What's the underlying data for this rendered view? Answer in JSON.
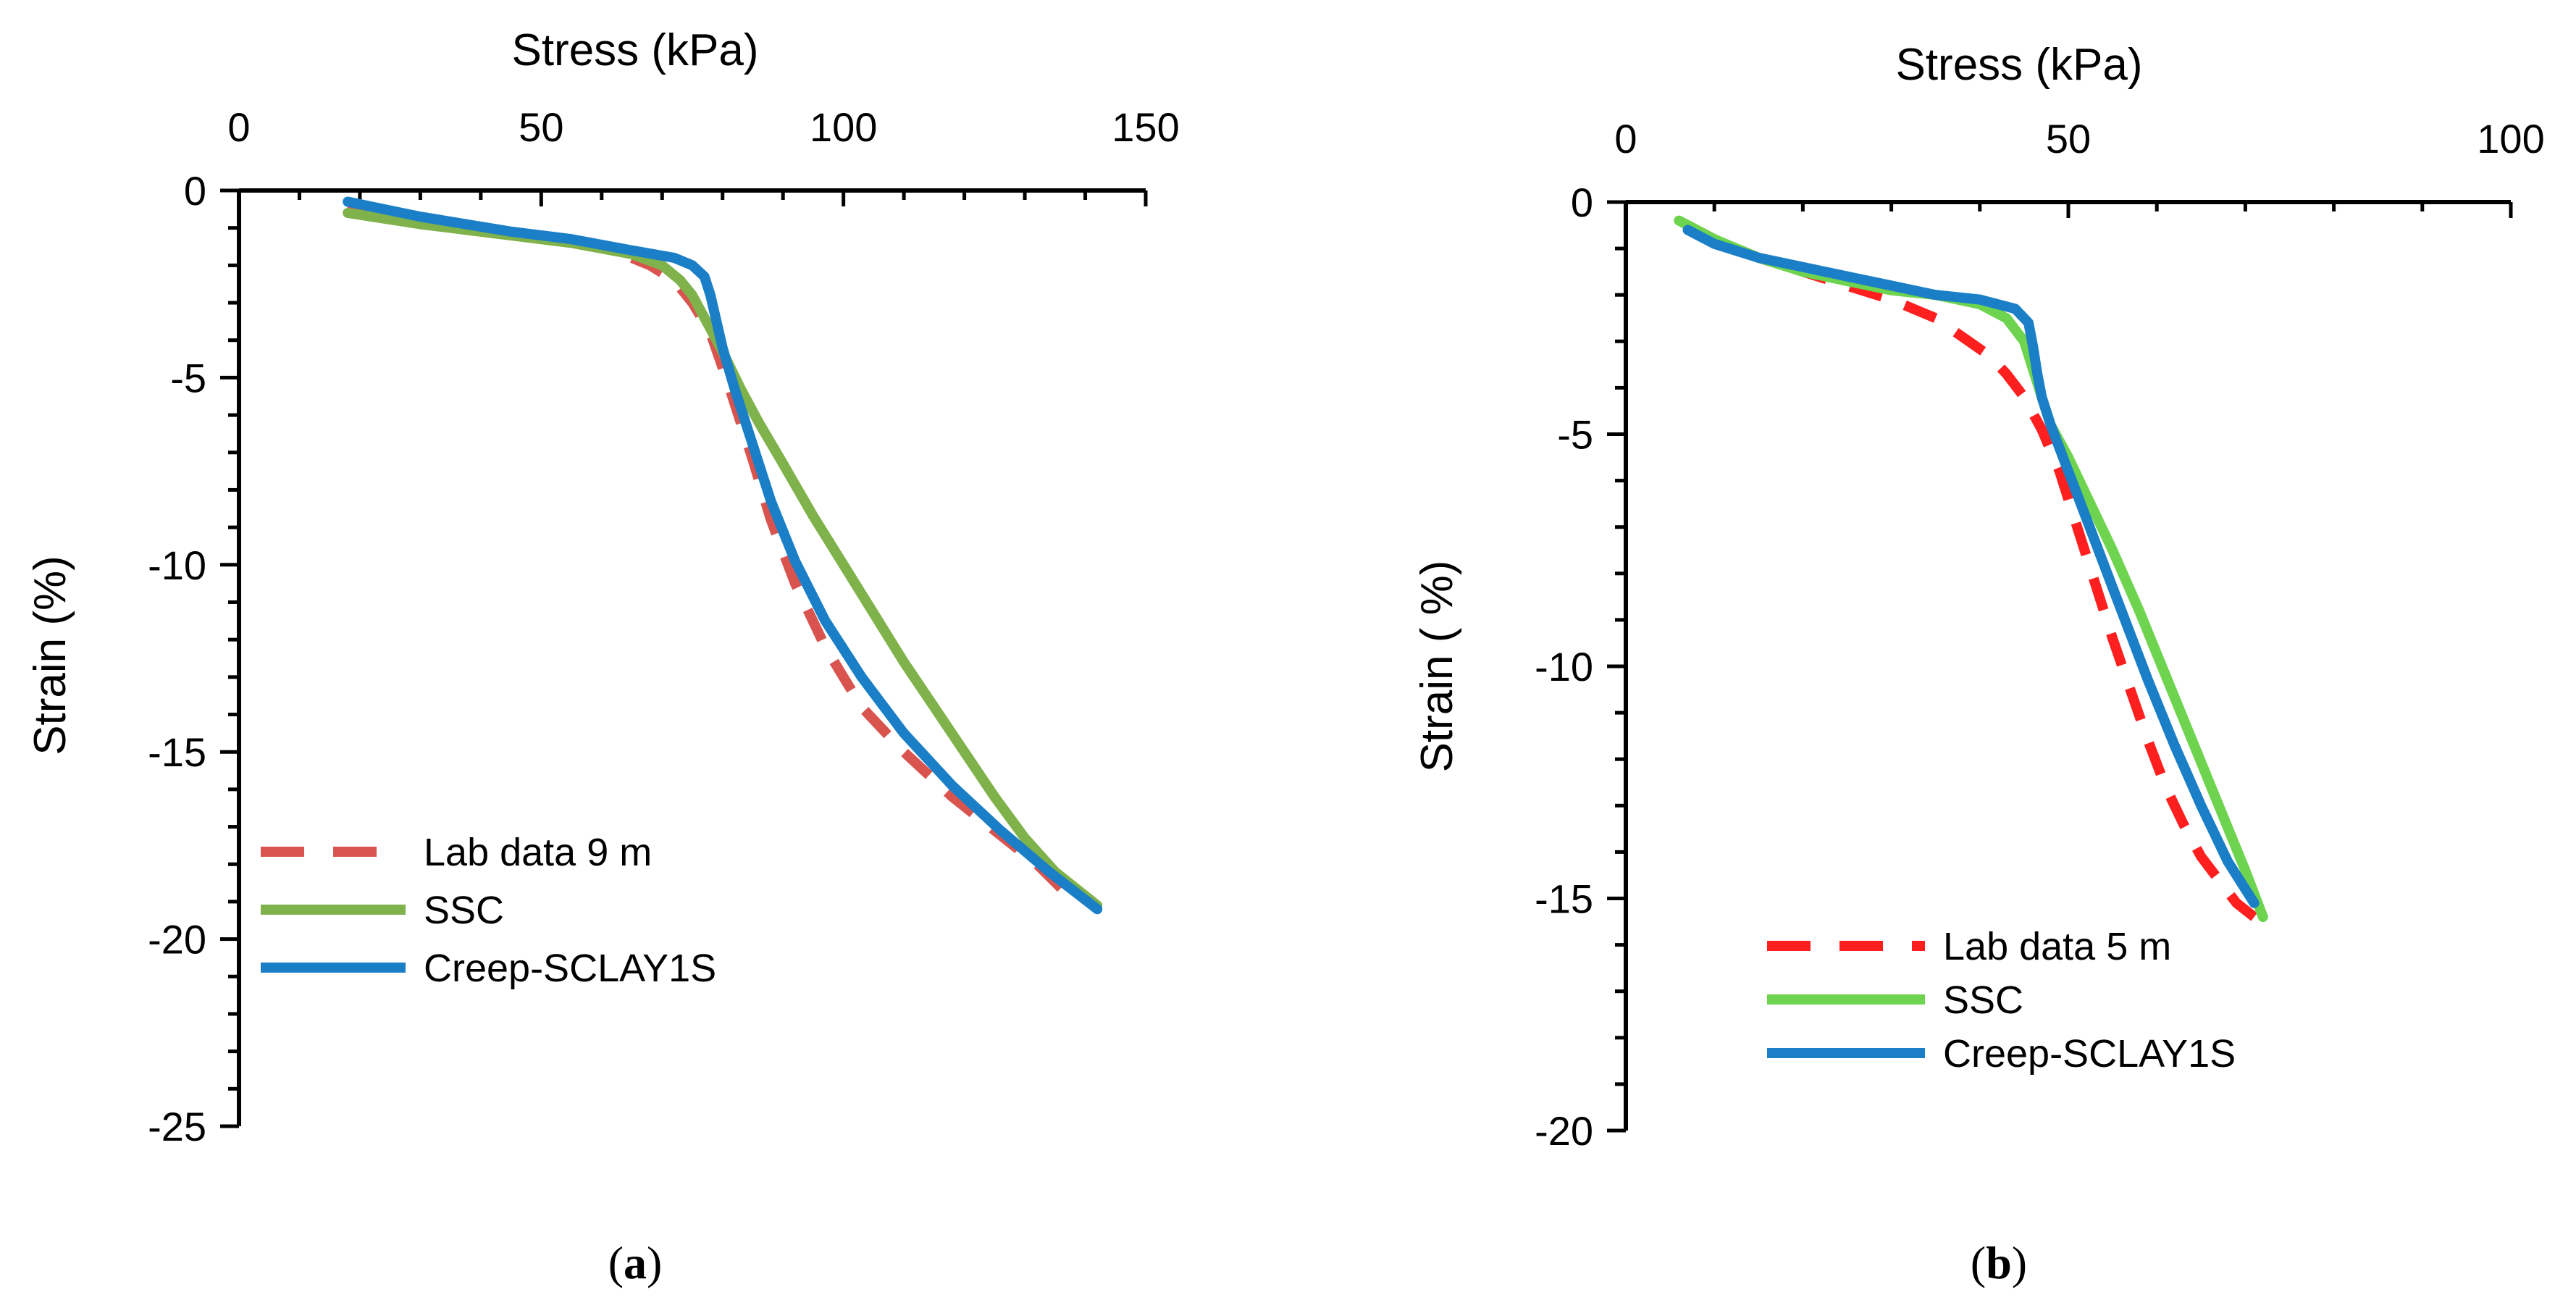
{
  "colors": {
    "lab_a": "#d9534f",
    "lab_b": "#ff1f1f",
    "ssc_a": "#7fb24a",
    "ssc_b": "#6ed34e",
    "creep": "#1a7fc6",
    "axis": "#000000"
  },
  "chart_data": [
    {
      "type": "line",
      "panel_label": "a",
      "caption_open": "(",
      "caption_close": ")",
      "title": "",
      "xlabel": "Stress (kPa)",
      "ylabel": "Strain (%)",
      "xlim": [
        0,
        150
      ],
      "ylim": [
        -25,
        0
      ],
      "x_ticks": [
        0,
        50,
        100,
        150
      ],
      "y_ticks": [
        0,
        -5,
        -10,
        -15,
        -20,
        -25
      ],
      "x_minor_step": 10,
      "y_minor_step": 1,
      "legend_position": "bottom-left",
      "series": [
        {
          "name": "Lab  data 9 m",
          "style": "dashed",
          "color_key": "lab_a",
          "x": [
            18,
            30,
            45,
            55,
            62,
            65,
            68,
            71,
            73,
            75,
            78,
            81,
            83,
            85,
            88,
            92,
            97,
            103,
            110,
            118,
            125,
            132,
            137
          ],
          "y": [
            -0.4,
            -0.8,
            -1.1,
            -1.4,
            -1.6,
            -1.8,
            -2.0,
            -2.3,
            -2.6,
            -3.0,
            -3.8,
            -5.2,
            -6.2,
            -7.2,
            -8.8,
            -10.5,
            -12.2,
            -13.8,
            -15.0,
            -16.2,
            -17.1,
            -18.0,
            -18.8
          ]
        },
        {
          "name": "SSC",
          "style": "solid",
          "color_key": "ssc_a",
          "x": [
            18,
            30,
            45,
            55,
            65,
            70,
            73,
            75,
            77,
            80,
            83,
            86,
            90,
            95,
            100,
            105,
            110,
            115,
            120,
            125,
            130,
            135,
            142
          ],
          "y": [
            -0.6,
            -0.9,
            -1.2,
            -1.4,
            -1.7,
            -2.0,
            -2.4,
            -2.8,
            -3.4,
            -4.3,
            -5.3,
            -6.2,
            -7.3,
            -8.7,
            -10.0,
            -11.3,
            -12.6,
            -13.8,
            -15.0,
            -16.2,
            -17.3,
            -18.2,
            -19.1
          ]
        },
        {
          "name": "Creep-SCLAY1S",
          "style": "solid",
          "color_key": "creep",
          "x": [
            18,
            30,
            45,
            55,
            65,
            72,
            75,
            77,
            78,
            79,
            80,
            82,
            85,
            88,
            92,
            97,
            103,
            110,
            118,
            126,
            134,
            142
          ],
          "y": [
            -0.3,
            -0.7,
            -1.1,
            -1.3,
            -1.6,
            -1.8,
            -2.0,
            -2.3,
            -2.8,
            -3.5,
            -4.2,
            -5.3,
            -6.8,
            -8.3,
            -9.9,
            -11.5,
            -13.0,
            -14.5,
            -15.9,
            -17.1,
            -18.2,
            -19.2
          ]
        }
      ]
    },
    {
      "type": "line",
      "panel_label": "b",
      "caption_open": "(",
      "caption_close": ")",
      "title": "",
      "xlabel": "Stress (kPa)",
      "ylabel": "Strain ( %)",
      "xlim": [
        0,
        100
      ],
      "ylim": [
        -20,
        0
      ],
      "x_ticks": [
        0,
        50,
        100
      ],
      "y_ticks": [
        0,
        -5,
        -10,
        -15,
        -20
      ],
      "x_minor_step": 10,
      "y_minor_step": 1,
      "legend_position": "bottom-left",
      "series": [
        {
          "name": "Lab data 5 m",
          "style": "dashed",
          "color_key": "lab_b",
          "x": [
            7,
            10,
            15,
            20,
            25,
            30,
            35,
            38,
            41,
            43,
            45,
            47,
            49,
            51,
            53,
            55,
            57,
            59,
            61,
            63,
            65,
            67,
            69,
            71
          ],
          "y": [
            -0.5,
            -0.8,
            -1.2,
            -1.5,
            -1.8,
            -2.1,
            -2.5,
            -2.9,
            -3.3,
            -3.7,
            -4.2,
            -4.9,
            -5.8,
            -7.0,
            -8.2,
            -9.4,
            -10.5,
            -11.6,
            -12.6,
            -13.4,
            -14.1,
            -14.6,
            -15.1,
            -15.4
          ]
        },
        {
          "name": "SSC",
          "style": "solid",
          "color_key": "ssc_b",
          "x": [
            6,
            10,
            15,
            20,
            25,
            30,
            35,
            40,
            43,
            45,
            46,
            47,
            48,
            50,
            52,
            55,
            58,
            61,
            64,
            67,
            70,
            72
          ],
          "y": [
            -0.4,
            -0.8,
            -1.2,
            -1.5,
            -1.7,
            -1.9,
            -2.0,
            -2.2,
            -2.5,
            -3.0,
            -3.6,
            -4.2,
            -4.8,
            -5.5,
            -6.3,
            -7.5,
            -8.8,
            -10.2,
            -11.6,
            -13.0,
            -14.4,
            -15.4
          ]
        },
        {
          "name": "Creep-SCLAY1S",
          "style": "solid",
          "color_key": "creep",
          "x": [
            7,
            10,
            15,
            20,
            25,
            30,
            35,
            40,
            44,
            45.5,
            46,
            46.5,
            47,
            48,
            50,
            53,
            56,
            59,
            62,
            65,
            68,
            71
          ],
          "y": [
            -0.6,
            -0.9,
            -1.2,
            -1.4,
            -1.6,
            -1.8,
            -2.0,
            -2.1,
            -2.3,
            -2.6,
            -3.1,
            -3.7,
            -4.2,
            -4.8,
            -5.8,
            -7.3,
            -8.8,
            -10.3,
            -11.7,
            -13.0,
            -14.2,
            -15.1
          ]
        }
      ]
    }
  ]
}
